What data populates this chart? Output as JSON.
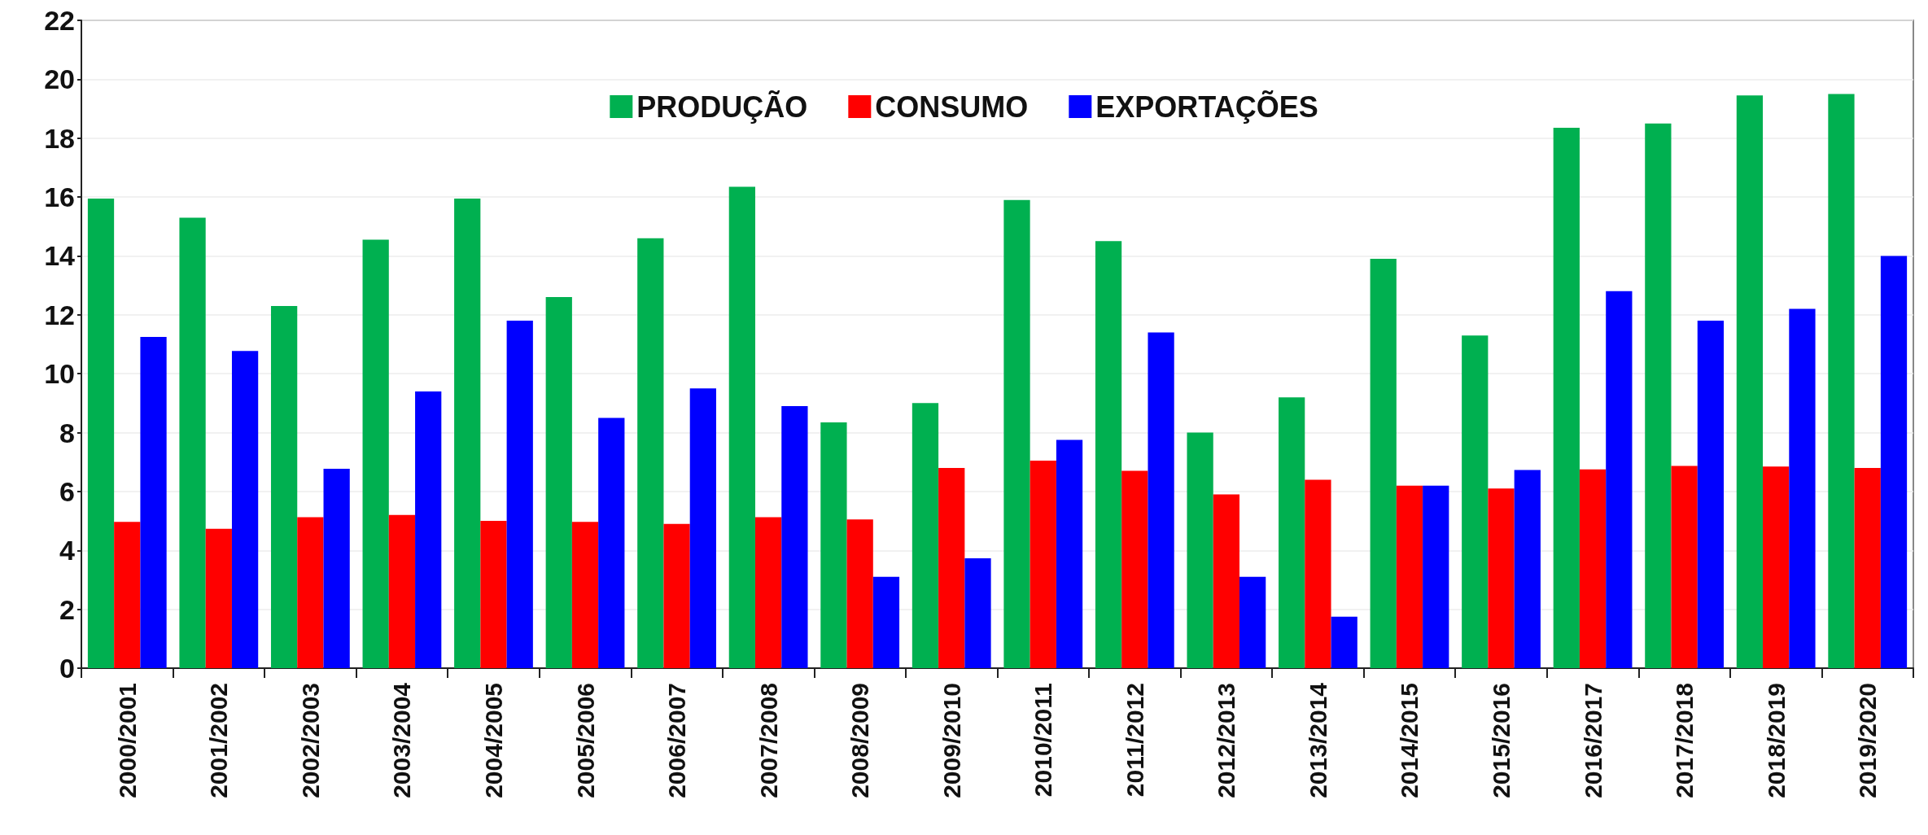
{
  "chart_data": {
    "type": "bar",
    "categories": [
      "2000/2001",
      "2001/2002",
      "2002/2003",
      "2003/2004",
      "2004/2005",
      "2005/2006",
      "2006/2007",
      "2007/2008",
      "2008/2009",
      "2009/2010",
      "2010/2011",
      "2011/2012",
      "2012/2013",
      "2013/2014",
      "2014/2015",
      "2015/2016",
      "2016/2017",
      "2017/2018",
      "2018/2019",
      "2019/2020"
    ],
    "series": [
      {
        "name": "PRODUÇÃO",
        "color": "#00b050",
        "values": [
          15.95,
          15.3,
          12.3,
          14.55,
          15.95,
          12.6,
          14.6,
          16.35,
          8.35,
          9.0,
          15.9,
          14.5,
          8.0,
          9.2,
          13.9,
          11.3,
          18.35,
          18.5,
          19.45,
          19.5
        ]
      },
      {
        "name": "CONSUMO",
        "color": "#ff0000",
        "values": [
          4.97,
          4.73,
          5.13,
          5.2,
          5.0,
          4.97,
          4.9,
          5.13,
          5.05,
          6.8,
          7.05,
          6.7,
          5.9,
          6.4,
          6.2,
          6.1,
          6.75,
          6.87,
          6.85,
          6.8
        ]
      },
      {
        "name": "EXPORTAÇÕES",
        "color": "#0000ff",
        "values": [
          11.25,
          10.77,
          6.77,
          9.4,
          11.8,
          8.5,
          9.5,
          8.9,
          3.1,
          3.73,
          7.75,
          11.4,
          3.1,
          1.75,
          6.2,
          6.73,
          12.8,
          11.8,
          12.2,
          14.0
        ]
      }
    ],
    "ylim": [
      0,
      22
    ],
    "yticks": [
      0,
      2,
      4,
      6,
      8,
      10,
      12,
      14,
      16,
      18,
      20,
      22
    ],
    "grid": "y",
    "legend": "top"
  }
}
